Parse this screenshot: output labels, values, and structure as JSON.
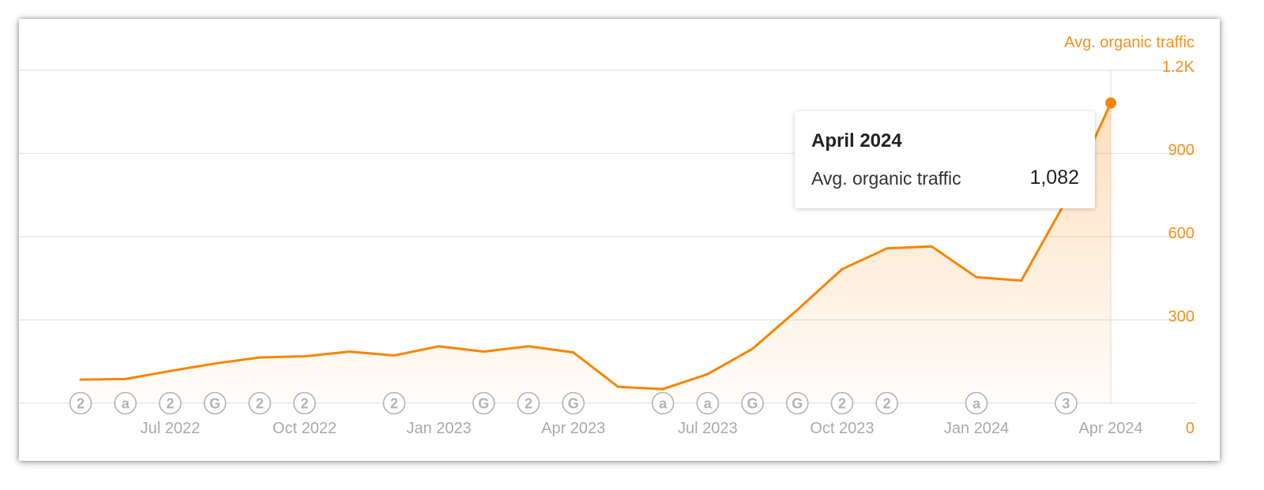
{
  "legend": {
    "label": "Avg. organic traffic"
  },
  "tooltip": {
    "title": "April 2024",
    "series_label": "Avg. organic traffic",
    "value": "1,082"
  },
  "colors": {
    "line": "#f98400",
    "axis_text": "#f7901e",
    "x_tick_text": "#aaaaaa",
    "grid": "#e3e3e3",
    "annotation": "#b3b3b3"
  },
  "chart_data": {
    "type": "area",
    "x_tick_labels": [
      "Jul 2022",
      "Oct 2022",
      "Jan 2023",
      "Apr 2023",
      "Jul 2023",
      "Oct 2023",
      "Jan 2024",
      "Apr 2024"
    ],
    "y_tick_labels": [
      "0",
      "300",
      "600",
      "900",
      "1.2K"
    ],
    "ylim": [
      0,
      1200
    ],
    "grid": true,
    "legend_position": "top-right",
    "series": [
      {
        "name": "Avg. organic traffic",
        "x": [
          "May 2022",
          "Jun 2022",
          "Jul 2022",
          "Aug 2022",
          "Sep 2022",
          "Oct 2022",
          "Nov 2022",
          "Dec 2022",
          "Jan 2023",
          "Feb 2023",
          "Mar 2023",
          "Apr 2023",
          "May 2023",
          "Jun 2023",
          "Jul 2023",
          "Aug 2023",
          "Sep 2023",
          "Oct 2023",
          "Nov 2023",
          "Dec 2023",
          "Jan 2024",
          "Feb 2024",
          "Mar 2024",
          "Apr 2024"
        ],
        "values": [
          85,
          87,
          116,
          143,
          165,
          169,
          186,
          172,
          205,
          186,
          205,
          183,
          59,
          51,
          105,
          196,
          336,
          483,
          558,
          565,
          454,
          442,
          730,
          1082
        ]
      }
    ],
    "annotations": [
      {
        "date": "May 2022",
        "label": "2"
      },
      {
        "date": "Jun 2022",
        "label": "a"
      },
      {
        "date": "Jul 2022",
        "label": "2"
      },
      {
        "date": "Aug 2022",
        "label": "G"
      },
      {
        "date": "Sep 2022",
        "label": "2"
      },
      {
        "date": "Oct 2022",
        "label": "2"
      },
      {
        "date": "Dec 2022",
        "label": "2"
      },
      {
        "date": "Feb 2023",
        "label": "G"
      },
      {
        "date": "Mar 2023",
        "label": "2"
      },
      {
        "date": "Apr 2023",
        "label": "G"
      },
      {
        "date": "Jun 2023",
        "label": "a"
      },
      {
        "date": "Jul 2023",
        "label": "a"
      },
      {
        "date": "Aug 2023",
        "label": "G"
      },
      {
        "date": "Sep 2023",
        "label": "G"
      },
      {
        "date": "Oct 2023",
        "label": "2"
      },
      {
        "date": "Nov 2023",
        "label": "2"
      },
      {
        "date": "Jan 2024",
        "label": "a"
      },
      {
        "date": "Mar 2024",
        "label": "3"
      }
    ]
  }
}
